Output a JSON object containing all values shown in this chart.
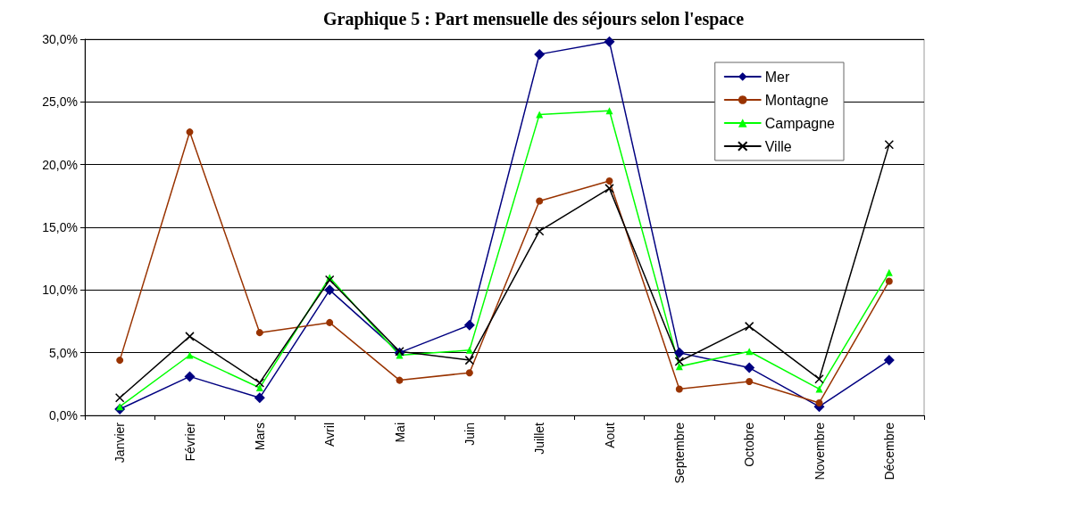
{
  "chart_data": {
    "type": "line",
    "title": "Graphique 5 : Part mensuelle des séjours selon l'espace",
    "categories": [
      "Janvier",
      "Février",
      "Mars",
      "Avril",
      "Mai",
      "Juin",
      "Juillet",
      "Aout",
      "Septembre",
      "Octobre",
      "Novembre",
      "Décembre"
    ],
    "series": [
      {
        "name": "Mer",
        "color": "#000080",
        "marker": "diamond",
        "values": [
          0.5,
          3.1,
          1.4,
          10.0,
          5.0,
          7.2,
          28.8,
          29.8,
          5.0,
          3.8,
          0.7,
          4.4
        ]
      },
      {
        "name": "Montagne",
        "color": "#993300",
        "marker": "circle",
        "values": [
          4.4,
          22.6,
          6.6,
          7.4,
          2.8,
          3.4,
          17.1,
          18.7,
          2.1,
          2.7,
          1.0,
          10.7
        ]
      },
      {
        "name": "Campagne",
        "color": "#00ff00",
        "marker": "triangle",
        "values": [
          0.7,
          4.8,
          2.2,
          11.0,
          4.8,
          5.2,
          24.0,
          24.3,
          3.9,
          5.1,
          2.1,
          11.4
        ]
      },
      {
        "name": "Ville",
        "color": "#000000",
        "marker": "cross",
        "values": [
          1.4,
          6.3,
          2.6,
          10.8,
          5.1,
          4.4,
          14.7,
          18.1,
          4.3,
          7.1,
          2.9,
          21.6
        ]
      }
    ],
    "ylim": [
      0,
      30
    ],
    "yticks": [
      {
        "value": 0,
        "label": "0,0%"
      },
      {
        "value": 5,
        "label": "5,0%"
      },
      {
        "value": 10,
        "label": "10,0%"
      },
      {
        "value": 15,
        "label": "15,0%"
      },
      {
        "value": 20,
        "label": "20,0%"
      },
      {
        "value": 25,
        "label": "25,0%"
      },
      {
        "value": 30,
        "label": "30,0%"
      }
    ],
    "grid": "y",
    "legend": "top right",
    "line_style": "solid"
  }
}
